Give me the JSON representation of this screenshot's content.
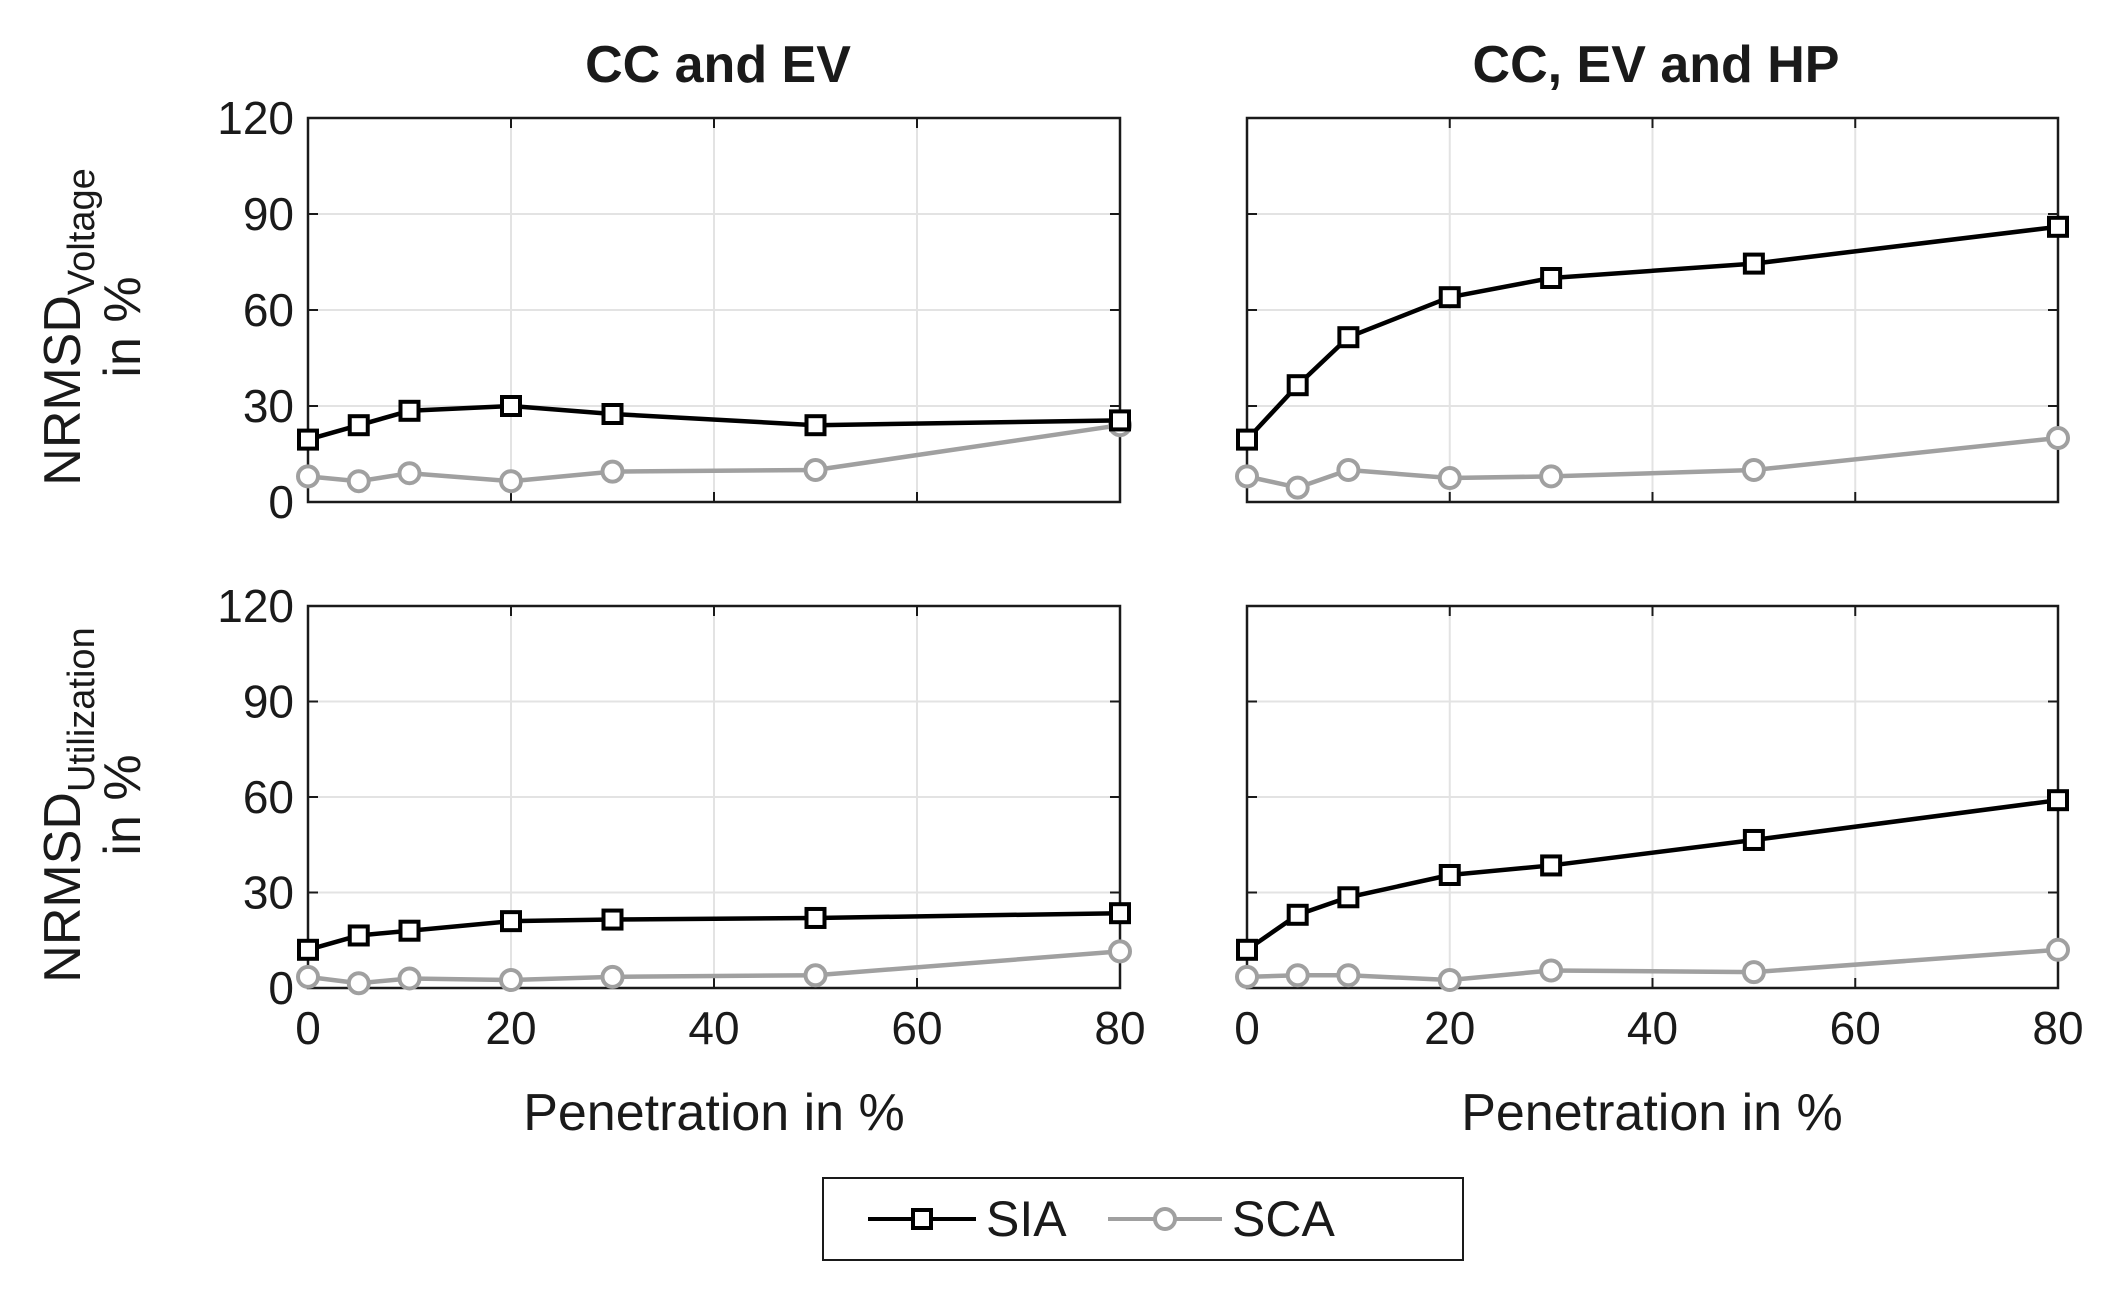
{
  "chart_data": [
    {
      "type": "line",
      "column": "CC and EV",
      "row": "voltage",
      "x": [
        0,
        5,
        10,
        20,
        30,
        50,
        80
      ],
      "series": [
        {
          "name": "SIA",
          "color": "#000000",
          "marker": "square",
          "values": [
            19.5,
            24,
            28.5,
            30,
            27.5,
            24,
            25.5
          ]
        },
        {
          "name": "SCA",
          "color": "#a0a0a0",
          "marker": "circle",
          "values": [
            8,
            6.5,
            9,
            6.5,
            9.5,
            10,
            24
          ]
        }
      ],
      "xlim": [
        0,
        80
      ],
      "ylim": [
        0,
        120
      ],
      "xticks": [
        0,
        20,
        40,
        60,
        80
      ],
      "yticks": [
        0,
        30,
        60,
        90,
        120
      ],
      "grid": true
    },
    {
      "type": "line",
      "column": "CC, EV and HP",
      "row": "voltage",
      "x": [
        0,
        5,
        10,
        20,
        30,
        50,
        80
      ],
      "series": [
        {
          "name": "SIA",
          "color": "#000000",
          "marker": "square",
          "values": [
            19.5,
            36.5,
            51.5,
            64,
            70,
            74.5,
            86
          ]
        },
        {
          "name": "SCA",
          "color": "#a0a0a0",
          "marker": "circle",
          "values": [
            8,
            4.5,
            10,
            7.5,
            8,
            10,
            20
          ]
        }
      ],
      "xlim": [
        0,
        80
      ],
      "ylim": [
        0,
        120
      ],
      "xticks": [
        0,
        20,
        40,
        60,
        80
      ],
      "yticks": [
        0,
        30,
        60,
        90,
        120
      ],
      "grid": true
    },
    {
      "type": "line",
      "column": "CC and EV",
      "row": "utilization",
      "x": [
        0,
        5,
        10,
        20,
        30,
        50,
        80
      ],
      "series": [
        {
          "name": "SIA",
          "color": "#000000",
          "marker": "square",
          "values": [
            12,
            16.5,
            18,
            21,
            21.5,
            22,
            23.5
          ]
        },
        {
          "name": "SCA",
          "color": "#a0a0a0",
          "marker": "circle",
          "values": [
            3.5,
            1.5,
            3,
            2.5,
            3.5,
            4,
            11.5
          ]
        }
      ],
      "xlim": [
        0,
        80
      ],
      "ylim": [
        0,
        120
      ],
      "xticks": [
        0,
        20,
        40,
        60,
        80
      ],
      "yticks": [
        0,
        30,
        60,
        90,
        120
      ],
      "grid": true
    },
    {
      "type": "line",
      "column": "CC, EV and HP",
      "row": "utilization",
      "x": [
        0,
        5,
        10,
        20,
        30,
        50,
        80
      ],
      "series": [
        {
          "name": "SIA",
          "color": "#000000",
          "marker": "square",
          "values": [
            12,
            23,
            28.5,
            35.5,
            38.5,
            46.5,
            59
          ]
        },
        {
          "name": "SCA",
          "color": "#a0a0a0",
          "marker": "circle",
          "values": [
            3.5,
            4,
            4,
            2.5,
            5.5,
            5,
            12
          ]
        }
      ],
      "xlim": [
        0,
        80
      ],
      "ylim": [
        0,
        120
      ],
      "xticks": [
        0,
        20,
        40,
        60,
        80
      ],
      "yticks": [
        0,
        30,
        60,
        90,
        120
      ],
      "grid": true
    }
  ],
  "titles": {
    "col1": "CC and EV",
    "col2": "CC, EV and HP"
  },
  "xlabel": "Penetration in %",
  "ylabels": {
    "voltage": {
      "main": "NRMSD",
      "sub": "Voltage",
      "unit": "in %"
    },
    "utilization": {
      "main": "NRMSD",
      "sub": "Utilization",
      "unit": "in %"
    }
  },
  "legend": [
    {
      "label": "SIA",
      "color": "#000000",
      "marker": "square"
    },
    {
      "label": "SCA",
      "color": "#a0a0a0",
      "marker": "circle"
    }
  ]
}
